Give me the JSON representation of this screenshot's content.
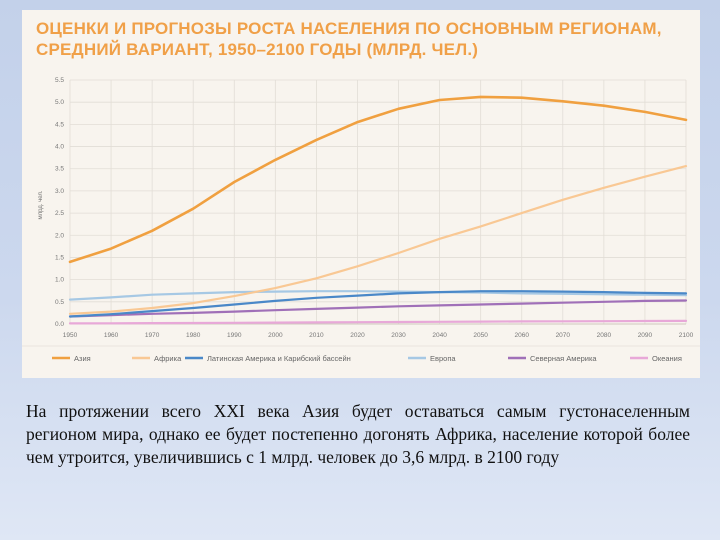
{
  "chart_data": {
    "type": "line",
    "title_lines": [
      "ОЦЕНКИ И ПРОГНОЗЫ РОСТА НАСЕЛЕНИЯ ПО ОСНОВНЫМ РЕГИОНАМ,",
      "СРЕДНИЙ ВАРИАНТ, 1950–2100 ГОДЫ (МЛРД. ЧЕЛ.)"
    ],
    "ylabel": "млрд. чел.",
    "xlim": [
      1950,
      2100
    ],
    "ylim": [
      0,
      5.5
    ],
    "x_ticks": [
      "1950",
      "1960",
      "1970",
      "1980",
      "1990",
      "2000",
      "2010",
      "2020",
      "2030",
      "2040",
      "2050",
      "2060",
      "2070",
      "2080",
      "2090",
      "2100"
    ],
    "y_ticks": [
      "0.0",
      "0.5",
      "1.0",
      "1.5",
      "2.0",
      "2.5",
      "3.0",
      "3.5",
      "4.0",
      "4.5",
      "5.0",
      "5.5"
    ],
    "grid": true,
    "legend_position": "bottom",
    "x": [
      1950,
      1960,
      1970,
      1980,
      1990,
      2000,
      2010,
      2020,
      2030,
      2040,
      2050,
      2060,
      2070,
      2080,
      2090,
      2100
    ],
    "series": [
      {
        "name": "Азия",
        "color": "#f0a040",
        "values": [
          1.4,
          1.7,
          2.1,
          2.6,
          3.2,
          3.7,
          4.15,
          4.55,
          4.85,
          5.05,
          5.12,
          5.1,
          5.02,
          4.92,
          4.78,
          4.6
        ]
      },
      {
        "name": "Африка",
        "color": "#f9c894",
        "values": [
          0.23,
          0.28,
          0.36,
          0.47,
          0.63,
          0.81,
          1.03,
          1.3,
          1.6,
          1.92,
          2.2,
          2.5,
          2.8,
          3.07,
          3.32,
          3.56
        ]
      },
      {
        "name": "Латинская Америка и Карибский бассейн",
        "color": "#4a88c8",
        "values": [
          0.17,
          0.22,
          0.29,
          0.36,
          0.44,
          0.52,
          0.59,
          0.64,
          0.69,
          0.72,
          0.74,
          0.74,
          0.73,
          0.72,
          0.7,
          0.69
        ]
      },
      {
        "name": "Европа",
        "color": "#a6c8e4",
        "values": [
          0.55,
          0.6,
          0.66,
          0.69,
          0.72,
          0.73,
          0.74,
          0.74,
          0.73,
          0.72,
          0.71,
          0.69,
          0.68,
          0.67,
          0.66,
          0.65
        ]
      },
      {
        "name": "Северная Америка",
        "color": "#a070b8",
        "values": [
          0.17,
          0.2,
          0.23,
          0.25,
          0.28,
          0.31,
          0.34,
          0.37,
          0.4,
          0.42,
          0.44,
          0.46,
          0.48,
          0.5,
          0.52,
          0.53
        ]
      },
      {
        "name": "Океания",
        "color": "#e8a8d8",
        "values": [
          0.013,
          0.016,
          0.02,
          0.023,
          0.027,
          0.031,
          0.036,
          0.04,
          0.045,
          0.05,
          0.054,
          0.058,
          0.061,
          0.064,
          0.067,
          0.07
        ]
      }
    ]
  },
  "caption": "На протяжении всего XXI века Азия будет оставаться самым густонаселенным регионом мира, однако ее будет постепенно догонять Африка, население которой более чем утроится, увеличившись с 1 млрд. человек до 3,6 млрд. в 2100 году"
}
